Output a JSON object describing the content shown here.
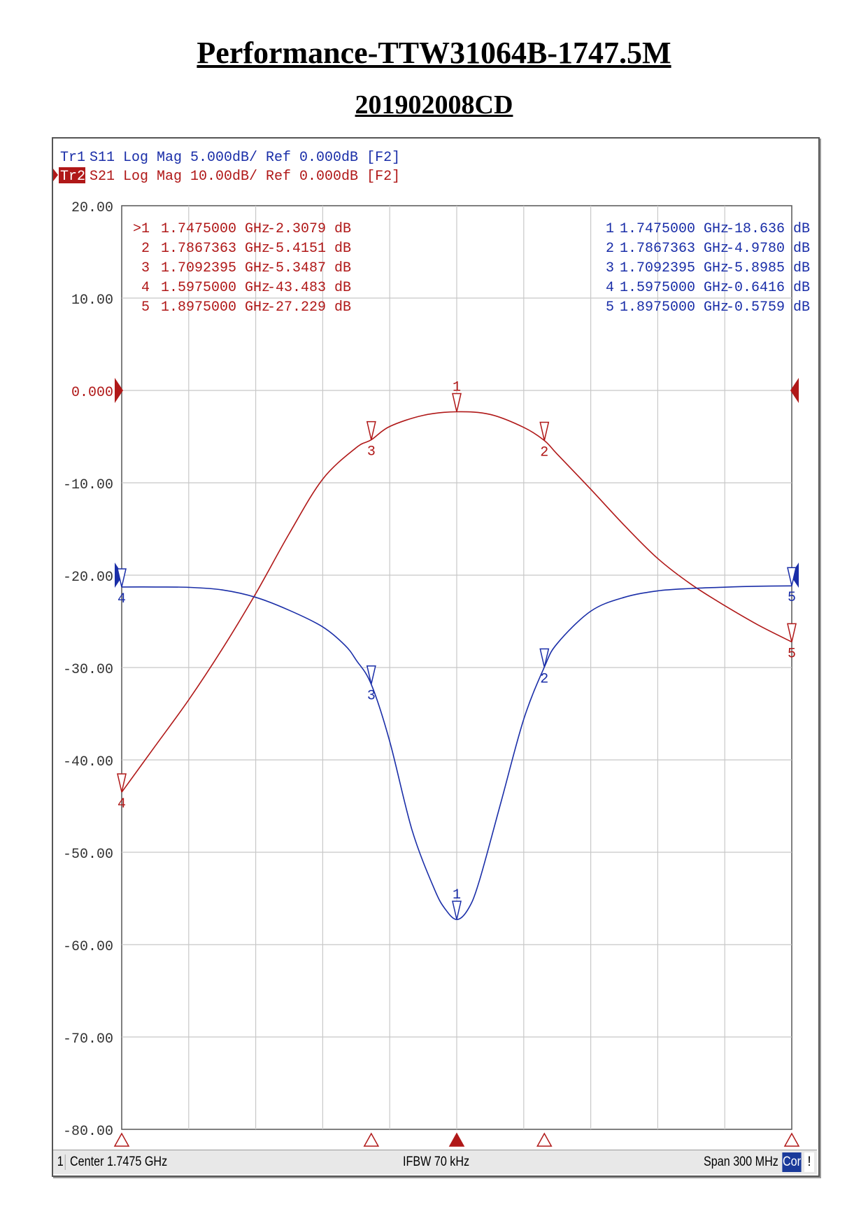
{
  "page": {
    "title": "Performance-TTW31064B-1747.5M",
    "subtitle": "201902008CD"
  },
  "colors": {
    "s11": "#1a2ea8",
    "s21": "#b01818",
    "grid": "#c8c8c8"
  },
  "header": {
    "tr1_label": "Tr1",
    "tr1_text": "S11 Log Mag 5.000dB/ Ref 0.000dB [F2]",
    "tr2_label": "Tr2",
    "tr2_text": "S21 Log Mag 10.00dB/ Ref 0.000dB [F2]"
  },
  "status": {
    "channel": "1",
    "center": "Center 1.7475 GHz",
    "ifbw": "IFBW 70 kHz",
    "span": "Span 300 MHz",
    "cor": "Cor",
    "end": "!"
  },
  "chart_data": {
    "type": "line",
    "x_unit": "GHz",
    "xlim": [
      1.5975,
      1.8975
    ],
    "ylim": [
      -80,
      20
    ],
    "y_ticks": [
      20,
      10,
      0,
      -10,
      -20,
      -30,
      -40,
      -50,
      -60,
      -70,
      -80
    ],
    "y_tick_labels": [
      "20.00",
      "10.00",
      "0.000",
      "-10.00",
      "-20.00",
      "-30.00",
      "-40.00",
      "-50.00",
      "-60.00",
      "-70.00",
      "-80.00"
    ],
    "reference_value": 0,
    "grid": true,
    "series": [
      {
        "key": "s21",
        "x": [
          1.5975,
          1.6125,
          1.6275,
          1.6425,
          1.6575,
          1.6725,
          1.6875,
          1.7025,
          1.7092,
          1.7175,
          1.7325,
          1.7475,
          1.7625,
          1.7775,
          1.7867,
          1.7925,
          1.8075,
          1.8225,
          1.8375,
          1.8525,
          1.8675,
          1.8825,
          1.8975
        ],
        "values": [
          -43.5,
          -38.5,
          -33.5,
          -28.0,
          -22.0,
          -15.5,
          -9.6,
          -6.2,
          -5.35,
          -3.9,
          -2.7,
          -2.31,
          -2.6,
          -4.0,
          -5.42,
          -6.9,
          -10.7,
          -14.6,
          -18.2,
          -21.0,
          -23.3,
          -25.4,
          -27.23
        ]
      },
      {
        "key": "s11",
        "x": [
          1.5975,
          1.6125,
          1.6275,
          1.6425,
          1.6575,
          1.6725,
          1.6875,
          1.6975,
          1.7025,
          1.7092,
          1.7175,
          1.7275,
          1.7375,
          1.7425,
          1.7475,
          1.7525,
          1.7575,
          1.7675,
          1.7775,
          1.7867,
          1.7925,
          1.8075,
          1.8225,
          1.8375,
          1.8525,
          1.8675,
          1.8825,
          1.8975
        ],
        "values": [
          -0.64,
          -0.64,
          -0.66,
          -0.8,
          -1.2,
          -1.9,
          -2.8,
          -3.8,
          -4.6,
          -5.9,
          -9.0,
          -13.8,
          -17.0,
          -18.1,
          -18.64,
          -18.1,
          -16.6,
          -12.2,
          -7.8,
          -4.98,
          -3.7,
          -1.95,
          -1.2,
          -0.85,
          -0.72,
          -0.65,
          -0.6,
          -0.58
        ]
      }
    ],
    "s11_scale": {
      "per_div": 5,
      "ref_value": 0
    },
    "s21_scale": {
      "per_div": 10,
      "ref_value": 0
    },
    "markers_s21": [
      {
        "num": "1",
        "active": ">1",
        "freq": "1.7475000 GHz",
        "value": "-2.3079 dB",
        "x": 1.7475,
        "y": -2.3079
      },
      {
        "num": "2",
        "active": "2",
        "freq": "1.7867363 GHz",
        "value": "-5.4151 dB",
        "x": 1.7867363,
        "y": -5.4151
      },
      {
        "num": "3",
        "active": "3",
        "freq": "1.7092395 GHz",
        "value": "-5.3487 dB",
        "x": 1.7092395,
        "y": -5.3487
      },
      {
        "num": "4",
        "active": "4",
        "freq": "1.5975000 GHz",
        "value": "-43.483 dB",
        "x": 1.5975,
        "y": -43.483
      },
      {
        "num": "5",
        "active": "5",
        "freq": "1.8975000 GHz",
        "value": "-27.229 dB",
        "x": 1.8975,
        "y": -27.229
      }
    ],
    "markers_s11": [
      {
        "num": "1",
        "freq": "1.7475000 GHz",
        "value": "-18.636 dB",
        "x": 1.7475,
        "y": -18.636
      },
      {
        "num": "2",
        "freq": "1.7867363 GHz",
        "value": "-4.9780 dB",
        "x": 1.7867363,
        "y": -4.978
      },
      {
        "num": "3",
        "freq": "1.7092395 GHz",
        "value": "-5.8985 dB",
        "x": 1.7092395,
        "y": -5.8985
      },
      {
        "num": "4",
        "freq": "1.5975000 GHz",
        "value": "-0.6416 dB",
        "x": 1.5975,
        "y": -0.6416
      },
      {
        "num": "5",
        "freq": "1.8975000 GHz",
        "value": "-0.5759 dB",
        "x": 1.8975,
        "y": -0.5759
      }
    ]
  }
}
